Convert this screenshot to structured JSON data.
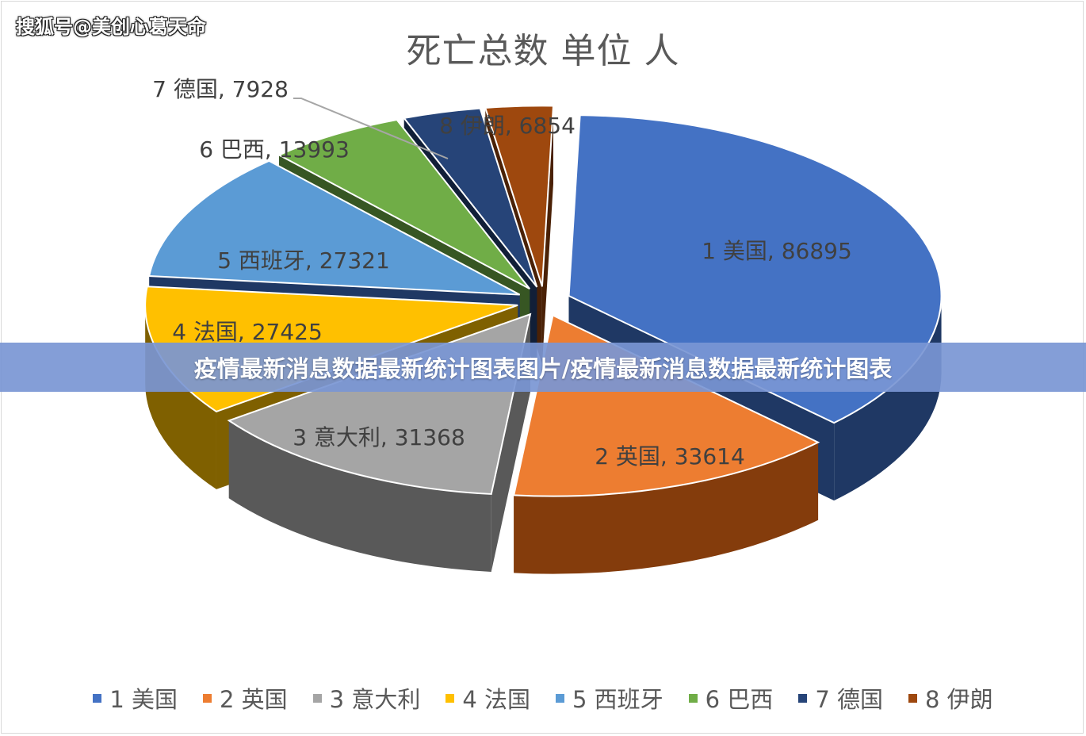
{
  "watermark": "搜狐号@美创心葛天命",
  "banner": "疫情最新消息数据最新统计图表图片/疫情最新消息数据最新统计图表",
  "chart_data": {
    "type": "pie",
    "title": "死亡总数 单位 人",
    "legend_position": "bottom",
    "slices": [
      {
        "name": "1 美国",
        "value": 86895,
        "label": "1 美国, 86895",
        "color": "#4472c4",
        "side": "#1f3864"
      },
      {
        "name": "2 英国",
        "value": 33614,
        "label": "2 英国, 33614",
        "color": "#ed7d31",
        "side": "#843c0c"
      },
      {
        "name": "3 意大利",
        "value": 31368,
        "label": "3 意大利, 31368",
        "color": "#a5a5a5",
        "side": "#595959"
      },
      {
        "name": "4 法国",
        "value": 27425,
        "label": "4 法国, 27425",
        "color": "#ffc000",
        "side": "#7f6000"
      },
      {
        "name": "5 西班牙",
        "value": 27321,
        "label": "5 西班牙, 27321",
        "color": "#5b9bd5",
        "side": "#1f3864"
      },
      {
        "name": "6 巴西",
        "value": 13993,
        "label": "6 巴西, 13993",
        "color": "#70ad47",
        "side": "#375623"
      },
      {
        "name": "7 德国",
        "value": 7928,
        "label": "7 德国, 7928",
        "color": "#264478",
        "side": "#111f38"
      },
      {
        "name": "8 伊朗",
        "value": 6854,
        "label": "8 伊朗, 6854",
        "color": "#9e480e",
        "side": "#4a2106"
      }
    ]
  }
}
